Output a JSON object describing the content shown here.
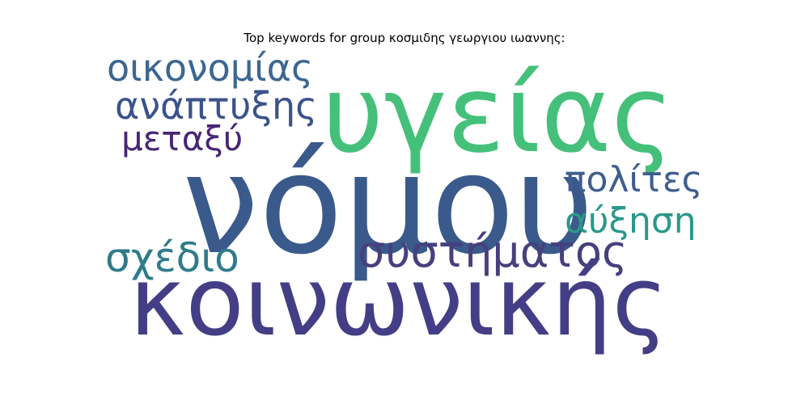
{
  "chart_data": {
    "type": "wordcloud",
    "title": "Top keywords for group κοσμιδης γεωργιου ιωαννης:",
    "words": [
      {
        "text": "νόμου",
        "weight": 1.0,
        "color": "#3a5a8c"
      },
      {
        "text": "κοινωνικής",
        "weight": 0.92,
        "color": "#433e85"
      },
      {
        "text": "υγείας",
        "weight": 0.85,
        "color": "#45c07a"
      },
      {
        "text": "συστήματος",
        "weight": 0.44,
        "color": "#46407e"
      },
      {
        "text": "οικονομίας",
        "weight": 0.38,
        "color": "#3b6791"
      },
      {
        "text": "ανάπτυξης",
        "weight": 0.38,
        "color": "#3b528b"
      },
      {
        "text": "σχέδιο",
        "weight": 0.42,
        "color": "#2e7b8c"
      },
      {
        "text": "πολίτες",
        "weight": 0.36,
        "color": "#3e5e8d"
      },
      {
        "text": "αύξηση",
        "weight": 0.36,
        "color": "#2a988a"
      },
      {
        "text": "μεταξύ",
        "weight": 0.34,
        "color": "#482576"
      }
    ]
  }
}
